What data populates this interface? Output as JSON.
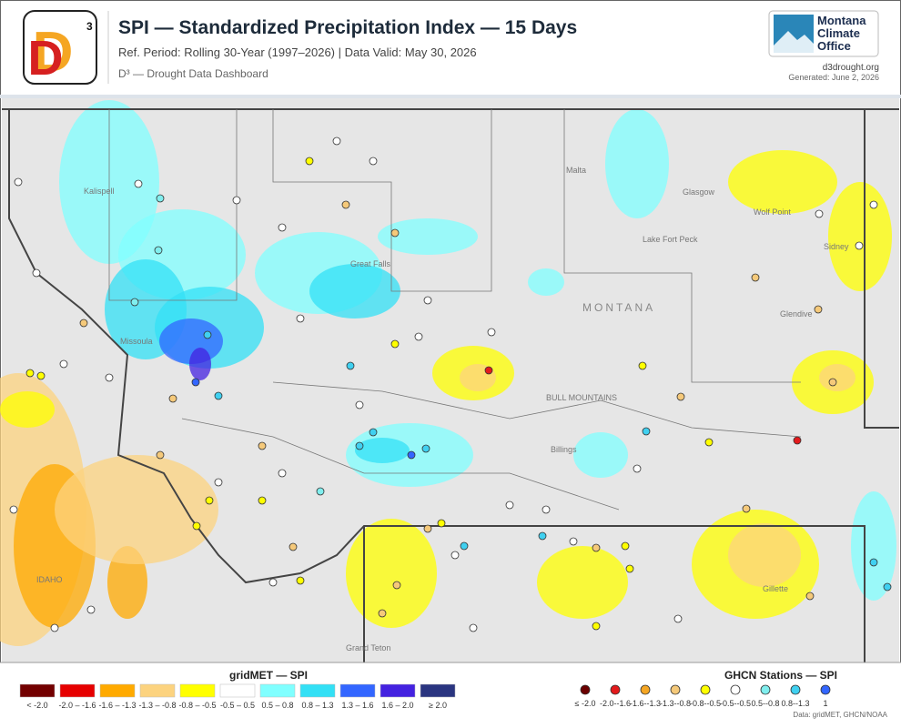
{
  "header": {
    "title": "SPI — Standardized Precipitation Index — 15 Days",
    "subtitle": "Ref. Period: Rolling 30-Year (1997–2026)  |  Data Valid: May 30, 2026",
    "tagline": "D³ — Drought Data Dashboard",
    "logo_mark": "D",
    "logo_sup": "3",
    "org_lines": [
      "Montana",
      "Climate",
      "Office"
    ],
    "url": "d3drought.org",
    "generated": "Generated: June 2, 2026"
  },
  "map": {
    "places": [
      "Kalispell",
      "Missoula",
      "Great Falls",
      "Malta",
      "Glasgow",
      "Wolf Point",
      "Sidney",
      "Glendive",
      "MONTANA",
      "Billings",
      "Gillette",
      "IDAHO",
      "Lake Fort Peck",
      "BULL MOUNTAINS",
      "Grand Teton"
    ]
  },
  "legend": {
    "grid_title": "gridMET — SPI",
    "grid_items": [
      {
        "label": "< -2.0",
        "color": "#730000"
      },
      {
        "label": "-2.0 – -1.6",
        "color": "#e60000"
      },
      {
        "label": "-1.6 – -1.3",
        "color": "#ffaa00"
      },
      {
        "label": "-1.3 – -0.8",
        "color": "#fcd37f"
      },
      {
        "label": "-0.8 – -0.5",
        "color": "#ffff00"
      },
      {
        "label": "-0.5 – 0.5",
        "color": "#ffffff"
      },
      {
        "label": "0.5 – 0.8",
        "color": "#80ffff"
      },
      {
        "label": "0.8 – 1.3",
        "color": "#33e0f5"
      },
      {
        "label": "1.3 – 1.6",
        "color": "#3366ff"
      },
      {
        "label": "1.6 – 2.0",
        "color": "#4422e0"
      },
      {
        "label": "≥ 2.0",
        "color": "#2a3580"
      }
    ],
    "station_title": "GHCN Stations — SPI",
    "station_items": [
      {
        "label": "≤ -2.0",
        "color": "#6b0000"
      },
      {
        "label": "-2.0--1.6",
        "color": "#e31a1c"
      },
      {
        "label": "-1.6--1.3",
        "color": "#f5a623"
      },
      {
        "label": "-1.3--0.8",
        "color": "#f5c97a"
      },
      {
        "label": "-0.8--0.5",
        "color": "#ffff00"
      },
      {
        "label": "-0.5--0.5",
        "color": "#ffffff"
      },
      {
        "label": "0.5--0.8",
        "color": "#80eeee"
      },
      {
        "label": "0.8--1.3",
        "color": "#40d0f0"
      },
      {
        "label": "1",
        "color": "#3366ff"
      }
    ],
    "source": "Data: gridMET, GHCN/NOAA"
  }
}
